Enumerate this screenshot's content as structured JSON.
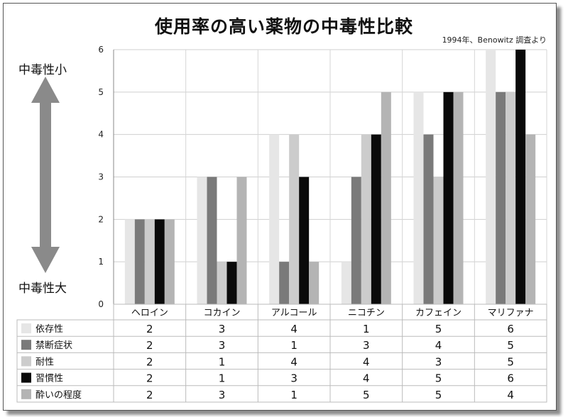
{
  "title": "使用率の高い薬物の中毒性比較",
  "source": "1994年、Benowitz 調査より",
  "arrow_top_label": "中毒性小",
  "arrow_bottom_label": "中毒性大",
  "colors": {
    "依存性": "#e6e6e6",
    "禁断症状": "#7a7a7a",
    "耐性": "#cccccc",
    "習慣性": "#0a0a0a",
    "酔いの程度": "#b4b4b4",
    "arrow": "#8a8a8a"
  },
  "chart_data": {
    "type": "bar",
    "title": "使用率の高い薬物の中毒性比較",
    "categories": [
      "ヘロイン",
      "コカイン",
      "アルコール",
      "ニコチン",
      "カフェイン",
      "マリファナ"
    ],
    "ylim": [
      0,
      6
    ],
    "yticks": [
      "0",
      "1",
      "2",
      "3",
      "4",
      "5",
      "6"
    ],
    "grid": true,
    "legend": "table-below",
    "series": [
      {
        "name": "依存性",
        "values": [
          2,
          3,
          4,
          1,
          5,
          6
        ]
      },
      {
        "name": "禁断症状",
        "values": [
          2,
          3,
          1,
          3,
          4,
          5
        ]
      },
      {
        "name": "耐性",
        "values": [
          2,
          1,
          4,
          4,
          3,
          5
        ]
      },
      {
        "name": "習慣性",
        "values": [
          2,
          1,
          3,
          4,
          5,
          6
        ]
      },
      {
        "name": "酔いの程度",
        "values": [
          2,
          3,
          1,
          5,
          5,
          4
        ]
      }
    ]
  }
}
